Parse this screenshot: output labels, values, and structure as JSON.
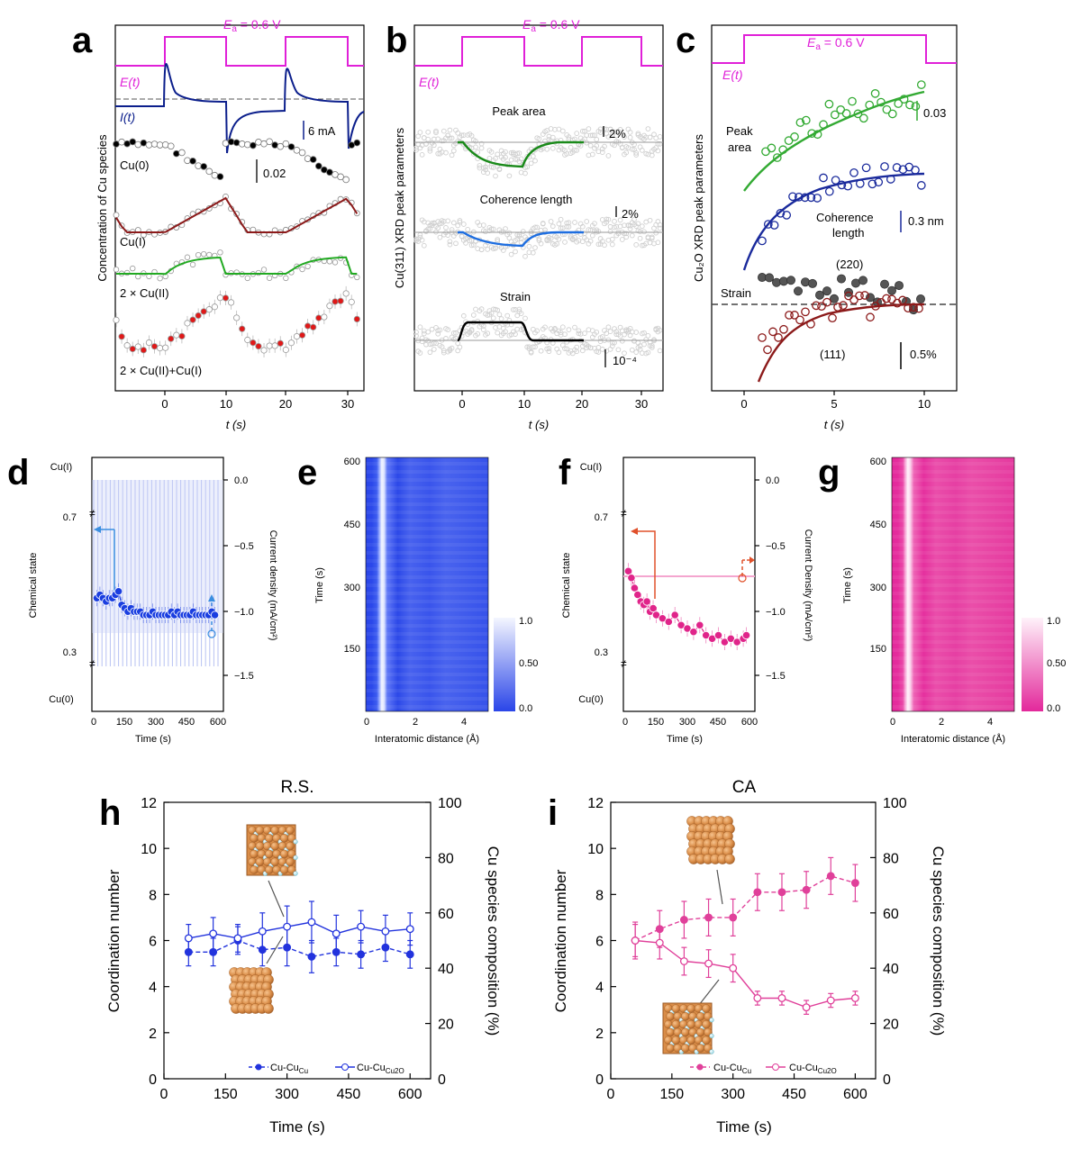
{
  "panels": {
    "a": {
      "letter": "a",
      "ea": "E",
      "ea_sub": "a",
      "ea_value": " = 0.6 V",
      "et": "E(t)",
      "it": "I(t)",
      "scale_current": "6 mA",
      "scale_conc": "0.02",
      "ylabel": "Concentration of Cu species",
      "xlabel": "t (s)",
      "curves": [
        "Cu(0)",
        "Cu(I)",
        "2 × Cu(II)",
        "2 × Cu(II)+Cu(I)"
      ],
      "xticks": [
        "0",
        "10",
        "20",
        "30"
      ]
    },
    "b": {
      "letter": "b",
      "ea": "E",
      "ea_sub": "a",
      "ea_value": " = 0.6 V",
      "et": "E(t)",
      "ylabel": "Cu(311) XRD peak parameters",
      "xlabel": "t (s)",
      "curves": [
        "Peak area",
        "Coherence length",
        "Strain"
      ],
      "scales": [
        "2%",
        "2%",
        "10⁻⁴"
      ],
      "xticks": [
        "0",
        "10",
        "20",
        "30"
      ]
    },
    "c": {
      "letter": "c",
      "ea": "E",
      "ea_sub": "a",
      "ea_value": " = 0.6 V",
      "et": "E(t)",
      "ylabel": "Cu₂O XRD peak parameters",
      "xlabel": "t (s)",
      "labels": {
        "peak_area_1": "Peak",
        "peak_area_2": "area",
        "coh_1": "Coherence",
        "coh_2": "length",
        "strain": "Strain",
        "p220": "(220)",
        "p111": "(111)"
      },
      "scales": [
        "0.03",
        "0.3 nm",
        "0.5%"
      ],
      "xticks": [
        "0",
        "5",
        "10"
      ]
    },
    "d": {
      "letter": "d",
      "left_ylabel": "Chemical state",
      "right_ylabel": "Current density (mA/cm²)",
      "xlabel": "Time (s)",
      "left_ticks": [
        "Cu(I)",
        "0.7",
        "0.3",
        "Cu(0)"
      ],
      "right_ticks": [
        "0.0",
        "−0.5",
        "−1.0",
        "−1.5"
      ],
      "xticks": [
        "0",
        "150",
        "300",
        "450",
        "600"
      ]
    },
    "e": {
      "letter": "e",
      "ylabel": "Time (s)",
      "xlabel": "Interatomic distance (Å)",
      "yticks": [
        "600",
        "450",
        "300",
        "150"
      ],
      "xticks": [
        "0",
        "2",
        "4"
      ],
      "cbar": [
        "1.0",
        "0.50",
        "0.0"
      ]
    },
    "f": {
      "letter": "f",
      "left_ylabel": "Chemical state",
      "right_ylabel": "Current Density (mA/cm²)",
      "xlabel": "Time (s)",
      "left_ticks": [
        "Cu(I)",
        "0.7",
        "0.3",
        "Cu(0)"
      ],
      "right_ticks": [
        "0.0",
        "−0.5",
        "−1.0",
        "−1.5"
      ],
      "xticks": [
        "0",
        "150",
        "300",
        "450",
        "600"
      ]
    },
    "g": {
      "letter": "g",
      "ylabel": "Time (s)",
      "xlabel": "Interatomic distance (Å)",
      "yticks": [
        "600",
        "450",
        "300",
        "150"
      ],
      "xticks": [
        "0",
        "2",
        "4"
      ],
      "cbar": [
        "1.0",
        "0.50",
        "0.0"
      ]
    },
    "h": {
      "letter": "h",
      "title": "R.S.",
      "left_ylabel": "Coordination number",
      "right_ylabel": "Cu species composition (%)",
      "xlabel": "Time (s)",
      "legend_a": "Cu-Cu",
      "legend_a_sub": "Cu",
      "legend_b": "Cu-Cu",
      "legend_b_sub": "Cu2O"
    },
    "i": {
      "letter": "i",
      "title": "CA",
      "left_ylabel": "Coordination number",
      "right_ylabel": "Cu species composition (%)",
      "xlabel": "Time (s)",
      "legend_a": "Cu-Cu",
      "legend_a_sub": "Cu",
      "legend_b": "Cu-Cu",
      "legend_b_sub": "Cu2O"
    }
  },
  "chart_data": [
    {
      "panel": "h",
      "type": "line",
      "title": "R.S.",
      "xlabel": "Time (s)",
      "ylabel": "Coordination number",
      "y2label": "Cu species composition (%)",
      "xlim": [
        0,
        650
      ],
      "ylim": [
        0,
        12
      ],
      "y2lim": [
        0,
        100
      ],
      "xticks": [
        0,
        150,
        300,
        450,
        600
      ],
      "yticks": [
        0,
        2,
        4,
        6,
        8,
        10,
        12
      ],
      "y2ticks": [
        0,
        20,
        40,
        60,
        80,
        100
      ],
      "series": [
        {
          "name": "Cu-Cu_Cu",
          "style": "dashed",
          "color": "#2233dd",
          "x": [
            60,
            120,
            180,
            240,
            300,
            360,
            420,
            480,
            540,
            600
          ],
          "y": [
            5.5,
            5.5,
            6.0,
            5.6,
            5.7,
            5.3,
            5.5,
            5.4,
            5.7,
            5.4
          ],
          "err": [
            0.6,
            0.6,
            0.6,
            0.7,
            0.8,
            0.7,
            0.6,
            0.6,
            0.6,
            0.6
          ]
        },
        {
          "name": "Cu-Cu_Cu2O",
          "style": "solid",
          "color": "#2233dd",
          "x": [
            60,
            120,
            180,
            240,
            300,
            360,
            420,
            480,
            540,
            600
          ],
          "y": [
            6.1,
            6.3,
            6.1,
            6.4,
            6.6,
            6.8,
            6.3,
            6.6,
            6.4,
            6.5
          ],
          "err": [
            0.6,
            0.7,
            0.6,
            0.8,
            0.9,
            0.9,
            0.8,
            0.7,
            0.7,
            0.7
          ]
        }
      ]
    },
    {
      "panel": "i",
      "type": "line",
      "title": "CA",
      "xlabel": "Time (s)",
      "ylabel": "Coordination number",
      "y2label": "Cu species composition (%)",
      "xlim": [
        0,
        650
      ],
      "ylim": [
        0,
        12
      ],
      "y2lim": [
        0,
        100
      ],
      "xticks": [
        0,
        150,
        300,
        450,
        600
      ],
      "yticks": [
        0,
        2,
        4,
        6,
        8,
        10,
        12
      ],
      "y2ticks": [
        0,
        20,
        40,
        60,
        80,
        100
      ],
      "series": [
        {
          "name": "Cu-Cu_Cu",
          "style": "dashed",
          "color": "#e0409a",
          "x": [
            60,
            120,
            180,
            240,
            300,
            360,
            420,
            480,
            540,
            600
          ],
          "y": [
            6.0,
            6.5,
            6.9,
            7.0,
            7.0,
            8.1,
            8.1,
            8.2,
            8.8,
            8.5
          ],
          "err": [
            0.8,
            0.8,
            0.8,
            0.8,
            0.8,
            0.8,
            0.8,
            0.8,
            0.8,
            0.8
          ]
        },
        {
          "name": "Cu-Cu_Cu2O",
          "style": "solid",
          "color": "#e0409a",
          "x": [
            60,
            120,
            180,
            240,
            300,
            360,
            420,
            480,
            540,
            600
          ],
          "y": [
            6.0,
            5.9,
            5.1,
            5.0,
            4.8,
            3.5,
            3.5,
            3.1,
            3.4,
            3.5
          ],
          "err": [
            0.7,
            0.7,
            0.6,
            0.6,
            0.6,
            0.3,
            0.3,
            0.3,
            0.3,
            0.3
          ]
        }
      ]
    },
    {
      "panel": "d",
      "type": "scatter",
      "xlabel": "Time (s)",
      "ylabel": "Chemical state",
      "y2label": "Current density (mA/cm²)",
      "xlim": [
        0,
        600
      ],
      "ylim": [
        0,
        1
      ],
      "y2lim": [
        -1.75,
        0.1
      ],
      "color": "#1a3ee0",
      "x": [
        15,
        30,
        45,
        60,
        75,
        90,
        105,
        120,
        135,
        150,
        165,
        180,
        195,
        210,
        225,
        240,
        255,
        270,
        285,
        300,
        315,
        330,
        345,
        360,
        375,
        390,
        405,
        420,
        435,
        450,
        465,
        480,
        495,
        510,
        525,
        540,
        555,
        570,
        585
      ],
      "y": [
        0.47,
        0.48,
        0.47,
        0.46,
        0.47,
        0.47,
        0.48,
        0.49,
        0.45,
        0.44,
        0.43,
        0.44,
        0.43,
        0.43,
        0.43,
        0.42,
        0.42,
        0.42,
        0.43,
        0.42,
        0.42,
        0.42,
        0.42,
        0.42,
        0.43,
        0.42,
        0.43,
        0.42,
        0.42,
        0.42,
        0.42,
        0.43,
        0.42,
        0.42,
        0.42,
        0.42,
        0.42,
        0.43,
        0.42
      ]
    },
    {
      "panel": "f",
      "type": "scatter",
      "xlabel": "Time (s)",
      "ylabel": "Chemical state",
      "y2label": "Current Density (mA/cm²)",
      "xlim": [
        0,
        600
      ],
      "ylim": [
        0,
        1
      ],
      "y2lim": [
        -1.75,
        0.1
      ],
      "color": "#e0248a",
      "x": [
        15,
        30,
        45,
        60,
        75,
        90,
        105,
        120,
        135,
        150,
        180,
        210,
        240,
        270,
        300,
        330,
        360,
        390,
        420,
        450,
        480,
        510,
        540,
        570,
        585
      ],
      "y": [
        0.55,
        0.53,
        0.5,
        0.48,
        0.46,
        0.45,
        0.46,
        0.43,
        0.44,
        0.42,
        0.41,
        0.4,
        0.42,
        0.39,
        0.38,
        0.37,
        0.39,
        0.36,
        0.35,
        0.36,
        0.34,
        0.35,
        0.34,
        0.35,
        0.36
      ]
    }
  ]
}
